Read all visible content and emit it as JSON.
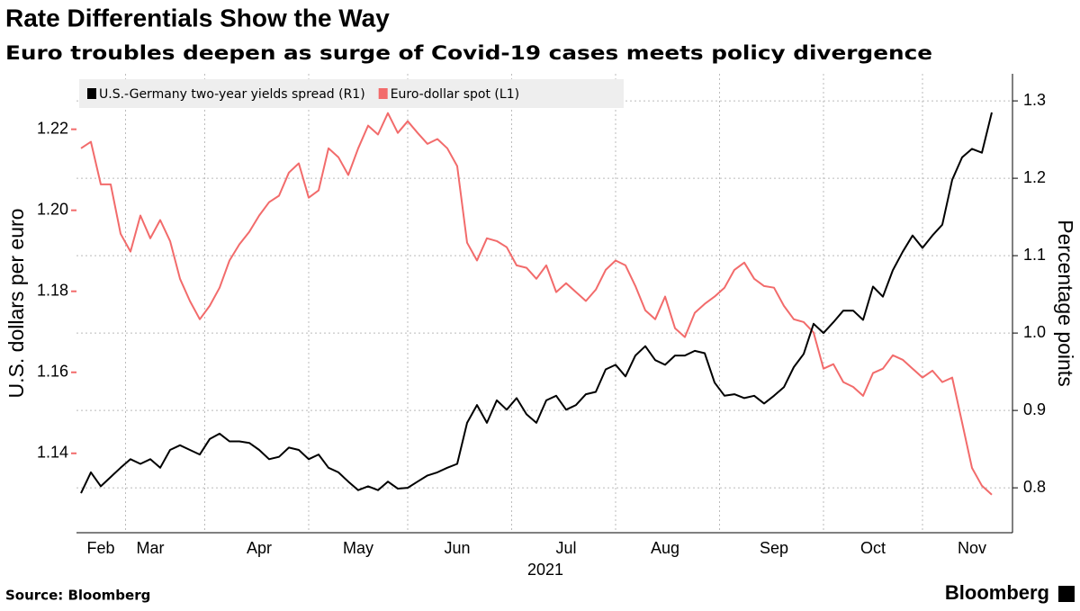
{
  "chart_data": {
    "type": "line",
    "title": "Rate Differentials Show the Way",
    "subtitle": "Euro troubles deepen as surge of Covid-19 cases meets policy divergence",
    "ylabel": "U.S. dollars per euro",
    "y2label": "Percentage points",
    "xlabel": "2021",
    "source": "Source: Bloomberg",
    "brand": "Bloomberg",
    "categories": [
      null,
      null,
      "Feb",
      null,
      null,
      null,
      null,
      "Mar",
      null,
      null,
      null,
      null,
      null,
      null,
      null,
      null,
      null,
      null,
      "Apr",
      null,
      null,
      null,
      null,
      null,
      null,
      null,
      null,
      null,
      "May",
      null,
      null,
      null,
      null,
      null,
      null,
      null,
      null,
      null,
      "Jun",
      null,
      null,
      null,
      null,
      null,
      null,
      null,
      null,
      null,
      null,
      "Jul",
      null,
      null,
      null,
      null,
      null,
      null,
      null,
      null,
      null,
      "Aug",
      null,
      null,
      null,
      null,
      null,
      null,
      null,
      null,
      null,
      null,
      "Sep",
      null,
      null,
      null,
      null,
      null,
      null,
      null,
      null,
      null,
      "Oct",
      null,
      null,
      null,
      null,
      null,
      null,
      null,
      null,
      null,
      "Nov",
      null,
      null
    ],
    "series": [
      {
        "name": "U.S.-Germany two-year yields spread (R1)",
        "color": "#000000",
        "axis": "y2",
        "values": [
          0.793,
          0.82,
          0.802,
          0.814,
          0.826,
          0.837,
          0.831,
          0.837,
          0.826,
          0.849,
          0.855,
          0.849,
          0.843,
          0.863,
          0.87,
          0.86,
          0.86,
          0.858,
          0.849,
          0.837,
          0.84,
          0.852,
          0.849,
          0.837,
          0.843,
          0.826,
          0.82,
          0.808,
          0.797,
          0.802,
          0.797,
          0.808,
          0.799,
          0.8,
          0.808,
          0.816,
          0.82,
          0.826,
          0.831,
          0.884,
          0.907,
          0.884,
          0.913,
          0.901,
          0.916,
          0.895,
          0.884,
          0.913,
          0.919,
          0.901,
          0.907,
          0.921,
          0.924,
          0.953,
          0.959,
          0.944,
          0.971,
          0.983,
          0.965,
          0.959,
          0.971,
          0.971,
          0.977,
          0.974,
          0.936,
          0.919,
          0.921,
          0.916,
          0.919,
          0.909,
          0.919,
          0.93,
          0.956,
          0.973,
          1.012,
          1.0,
          1.014,
          1.029,
          1.029,
          1.017,
          1.06,
          1.047,
          1.081,
          1.105,
          1.126,
          1.11,
          1.126,
          1.14,
          1.198,
          1.227,
          1.238,
          1.233,
          1.285
        ]
      },
      {
        "name": "Euro-dollar spot (L1)",
        "color": "#f26b6b",
        "axis": "y",
        "values": [
          1.2153,
          1.2169,
          1.2064,
          1.2064,
          1.1942,
          1.1898,
          1.1987,
          1.1931,
          1.1976,
          1.1924,
          1.1831,
          1.1776,
          1.1731,
          1.1764,
          1.1809,
          1.1876,
          1.1916,
          1.1947,
          1.1987,
          1.202,
          1.2036,
          1.2093,
          1.2116,
          1.2031,
          1.2049,
          1.2153,
          1.2131,
          1.2087,
          1.2153,
          1.2209,
          1.2187,
          1.224,
          1.2191,
          1.222,
          1.2191,
          1.2164,
          1.2176,
          1.2153,
          1.2109,
          1.192,
          1.1876,
          1.1931,
          1.1924,
          1.1909,
          1.1864,
          1.1858,
          1.1831,
          1.1864,
          1.1798,
          1.182,
          1.1798,
          1.1776,
          1.1804,
          1.1853,
          1.1876,
          1.1864,
          1.1813,
          1.1753,
          1.1731,
          1.1787,
          1.1709,
          1.1687,
          1.1747,
          1.1769,
          1.1787,
          1.1809,
          1.1853,
          1.1871,
          1.1831,
          1.1813,
          1.1809,
          1.1764,
          1.1731,
          1.1724,
          1.1698,
          1.1609,
          1.162,
          1.1576,
          1.1564,
          1.1542,
          1.1598,
          1.1609,
          1.1642,
          1.1631,
          1.1609,
          1.1587,
          1.1604,
          1.1576,
          1.1587,
          1.1476,
          1.1364,
          1.132,
          1.1298
        ]
      }
    ],
    "ylim": [
      1.1204,
      1.2337
    ],
    "yticks": [
      {
        "value": 1.14,
        "label": "1.14"
      },
      {
        "value": 1.16,
        "label": "1.16"
      },
      {
        "value": 1.18,
        "label": "1.18"
      },
      {
        "value": 1.2,
        "label": "1.20"
      },
      {
        "value": 1.22,
        "label": "1.22"
      }
    ],
    "y2lim": [
      0.742,
      1.335
    ],
    "y2ticks": [
      0.8,
      0.9,
      {
        "value": 1,
        "label": "1.0"
      },
      1.1,
      1.2,
      1.3
    ],
    "grid": true,
    "legend": "top-left"
  }
}
